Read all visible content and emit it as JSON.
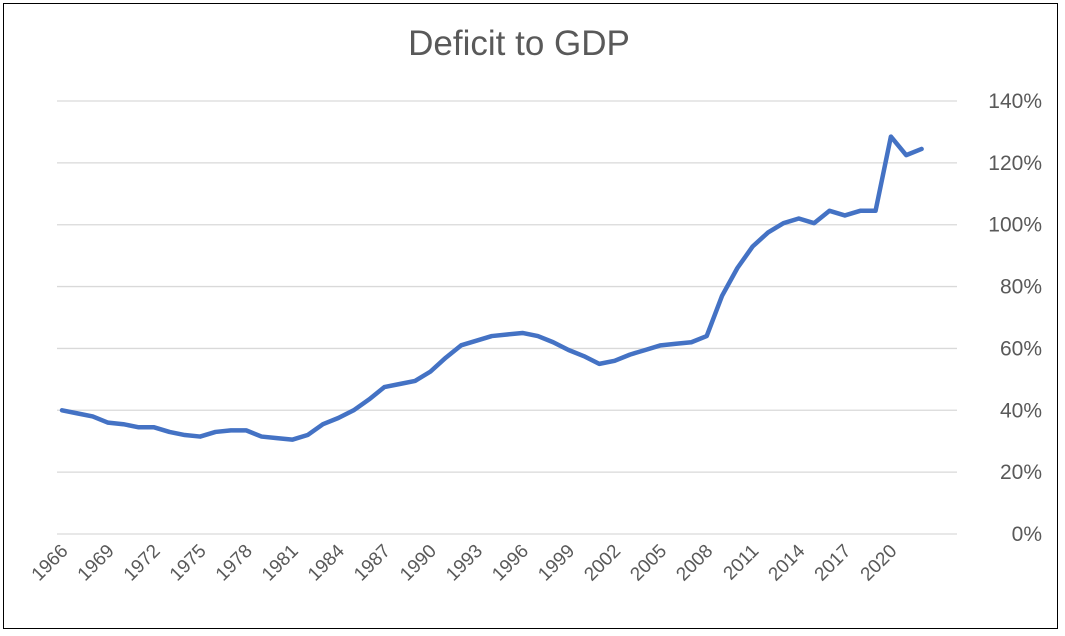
{
  "chart_data": {
    "type": "line",
    "title": "Deficit to GDP",
    "xlabel": "",
    "ylabel": "",
    "ylim": [
      0,
      140
    ],
    "y_ticks": [
      "0%",
      "20%",
      "40%",
      "60%",
      "80%",
      "100%",
      "120%",
      "140%"
    ],
    "y_tick_values": [
      0,
      20,
      40,
      60,
      80,
      100,
      120,
      140
    ],
    "y_axis_side": "right",
    "x_tick_labels": [
      "1966",
      "1969",
      "1972",
      "1975",
      "1978",
      "1981",
      "1984",
      "1987",
      "1990",
      "1993",
      "1996",
      "1999",
      "2002",
      "2005",
      "2008",
      "2011",
      "2014",
      "2017",
      "2020"
    ],
    "x": [
      1966,
      1967,
      1968,
      1969,
      1970,
      1971,
      1972,
      1973,
      1974,
      1975,
      1976,
      1977,
      1978,
      1979,
      1980,
      1981,
      1982,
      1983,
      1984,
      1985,
      1986,
      1987,
      1988,
      1989,
      1990,
      1991,
      1992,
      1993,
      1994,
      1995,
      1996,
      1997,
      1998,
      1999,
      2000,
      2001,
      2002,
      2003,
      2004,
      2005,
      2006,
      2007,
      2008,
      2009,
      2010,
      2011,
      2012,
      2013,
      2014,
      2015,
      2016,
      2017,
      2018,
      2019,
      2020,
      2021,
      2022
    ],
    "series": [
      {
        "values": [
          40,
          39,
          38,
          36,
          35.5,
          34.5,
          34.5,
          33,
          32,
          31.5,
          33,
          33.5,
          33.5,
          31.5,
          31,
          30.5,
          32,
          35.5,
          37.5,
          40,
          43.5,
          47.5,
          48.5,
          49.5,
          52.5,
          57,
          61,
          62.5,
          64,
          64.5,
          65,
          64,
          62,
          59.5,
          57.5,
          55,
          56,
          58,
          59.5,
          61,
          61.5,
          62,
          64,
          77,
          86,
          93,
          97.5,
          100.5,
          102,
          100.5,
          104.5,
          103,
          104.5,
          104.5,
          128.5,
          122.5,
          124.5
        ],
        "color": "#4472c4"
      }
    ],
    "grid": true,
    "legend": "none"
  }
}
